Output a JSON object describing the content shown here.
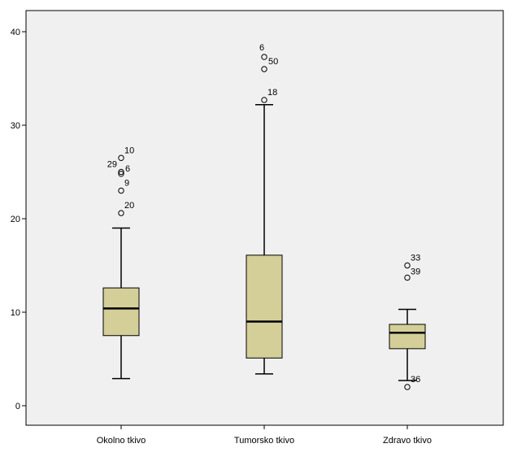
{
  "chart_data": {
    "type": "boxplot",
    "categories": [
      "Okolno tkivo",
      "Tumorsko tkivo",
      "Zdravo tkivo"
    ],
    "ylim": [
      -2,
      42.5
    ],
    "yticks": [
      0,
      10,
      20,
      30,
      40
    ],
    "grid": false,
    "boxes": [
      {
        "category": "Okolno tkivo",
        "min": 2.9,
        "q1": 7.5,
        "median": 10.4,
        "q3": 12.6,
        "max": 19.0,
        "outliers": [
          {
            "value": 26.5,
            "label": "10"
          },
          {
            "value": 25.0,
            "label": "29"
          },
          {
            "value": 24.8,
            "label": "6"
          },
          {
            "value": 23.0,
            "label": "9"
          },
          {
            "value": 20.6,
            "label": "20"
          }
        ]
      },
      {
        "category": "Tumorsko tkivo",
        "min": 3.4,
        "q1": 5.1,
        "median": 9.0,
        "q3": 16.1,
        "max": 32.2,
        "outliers": [
          {
            "value": 37.3,
            "label": "6"
          },
          {
            "value": 36.0,
            "label": "50"
          },
          {
            "value": 32.7,
            "label": "18"
          }
        ]
      },
      {
        "category": "Zdravo tkivo",
        "min": 2.7,
        "q1": 6.1,
        "median": 7.8,
        "q3": 8.7,
        "max": 10.3,
        "outliers": [
          {
            "value": 15.0,
            "label": "33"
          },
          {
            "value": 13.7,
            "label": "39"
          },
          {
            "value": 2.0,
            "label": "36"
          }
        ]
      }
    ]
  },
  "colors": {
    "plot_background": "#f0f0f0",
    "box_fill": "#d4cf98",
    "box_stroke": "#000000",
    "median": "#000000",
    "axis": "#000000"
  }
}
